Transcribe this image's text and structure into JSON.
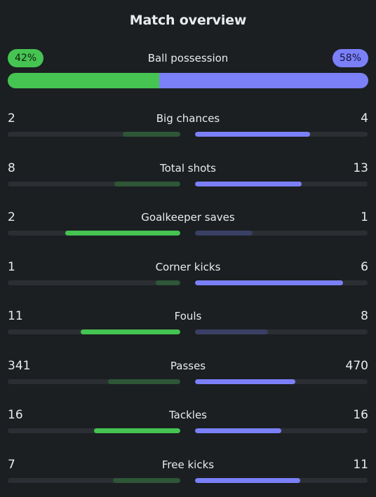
{
  "header": {
    "title": "Match overview"
  },
  "possession": {
    "label": "Ball possession",
    "home_text": "42%",
    "away_text": "58%",
    "home_value": 42,
    "away_value": 58
  },
  "stats": [
    {
      "label": "Big chances",
      "home": "2",
      "away": "4"
    },
    {
      "label": "Total shots",
      "home": "8",
      "away": "13"
    },
    {
      "label": "Goalkeeper saves",
      "home": "2",
      "away": "1"
    },
    {
      "label": "Corner kicks",
      "home": "1",
      "away": "6"
    },
    {
      "label": "Fouls",
      "home": "11",
      "away": "8"
    },
    {
      "label": "Passes",
      "home": "341",
      "away": "470"
    },
    {
      "label": "Tackles",
      "home": "16",
      "away": "16"
    },
    {
      "label": "Free kicks",
      "home": "7",
      "away": "11"
    }
  ],
  "colors": {
    "home": "#45c451",
    "home_dim": "#2e5637",
    "away": "#7b80f9",
    "away_dim": "#3a3f64",
    "background": "#1b1f22",
    "track": "#2b2f33"
  }
}
